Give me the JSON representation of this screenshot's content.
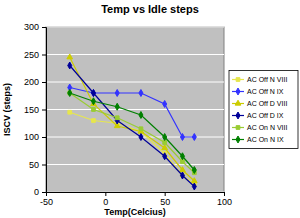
{
  "chart_data": {
    "type": "line",
    "title": "Temp vs Idle steps",
    "x_label": "Temp(Celcius)",
    "y_label": "ISCV (steps)",
    "x": [
      -30,
      -10,
      10,
      30,
      50,
      65,
      75
    ],
    "series": [
      {
        "name": "AC Off N VIII",
        "color": "#e6e64d",
        "marker": "square",
        "values": [
          145,
          130,
          125,
          110,
          70,
          30,
          15
        ]
      },
      {
        "name": "AC Off N IX",
        "color": "#3333ff",
        "marker": "diamond",
        "values": [
          190,
          180,
          180,
          180,
          160,
          100,
          100
        ]
      },
      {
        "name": "AC Off D VIII",
        "color": "#cccc00",
        "marker": "triangle",
        "values": [
          245,
          160,
          120,
          110,
          80,
          40,
          20
        ]
      },
      {
        "name": "AC Off D IX",
        "color": "#000099",
        "marker": "diamond",
        "values": [
          230,
          180,
          130,
          100,
          65,
          30,
          10
        ]
      },
      {
        "name": "AC On N VIII",
        "color": "#99cc33",
        "marker": "square",
        "values": [
          180,
          150,
          135,
          115,
          90,
          55,
          35
        ]
      },
      {
        "name": "AC On N IX",
        "color": "#008000",
        "marker": "diamond",
        "values": [
          180,
          165,
          155,
          140,
          100,
          65,
          40
        ]
      }
    ],
    "xlim": [
      -50,
      100
    ],
    "xticks": [
      -50,
      0,
      50,
      100
    ],
    "ylim": [
      0,
      300
    ],
    "yticks": [
      0,
      50,
      100,
      150,
      200,
      250,
      300
    ],
    "grid": true,
    "legend": "right"
  }
}
